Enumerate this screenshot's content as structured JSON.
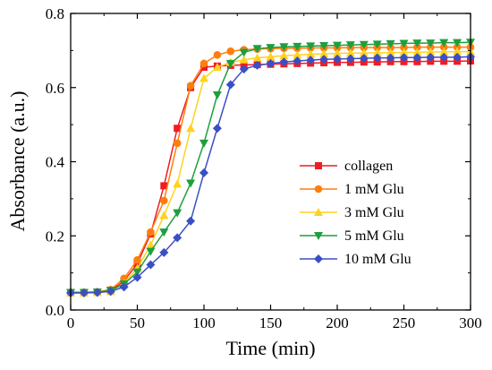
{
  "chart_data": {
    "type": "line",
    "title": "",
    "xlabel": "Time (min)",
    "ylabel": "Absorbance (a.u.)",
    "xlim": [
      0,
      300
    ],
    "ylim": [
      0,
      0.8
    ],
    "xticks": [
      0,
      50,
      100,
      150,
      200,
      250,
      300
    ],
    "yticks": [
      0.0,
      0.2,
      0.4,
      0.6,
      0.8
    ],
    "xtick_labels": [
      "0",
      "50",
      "100",
      "150",
      "200",
      "250",
      "300"
    ],
    "ytick_labels": [
      "0.0",
      "0.2",
      "0.4",
      "0.6",
      "0.8"
    ],
    "grid": false,
    "legend_position": "center-right",
    "x": [
      0,
      10,
      20,
      30,
      40,
      50,
      60,
      70,
      80,
      90,
      100,
      110,
      120,
      130,
      140,
      150,
      160,
      170,
      180,
      190,
      200,
      210,
      220,
      230,
      240,
      250,
      260,
      270,
      280,
      290,
      300
    ],
    "series": [
      {
        "name": "collagen",
        "color": "#ee1c25",
        "marker": "square",
        "values": [
          0.047,
          0.047,
          0.048,
          0.052,
          0.078,
          0.125,
          0.205,
          0.335,
          0.49,
          0.6,
          0.655,
          0.658,
          0.66,
          0.661,
          0.662,
          0.663,
          0.664,
          0.665,
          0.666,
          0.667,
          0.668,
          0.668,
          0.669,
          0.669,
          0.67,
          0.67,
          0.67,
          0.671,
          0.671,
          0.671,
          0.672
        ]
      },
      {
        "name": "1 mM Glu",
        "color": "#ff7f0e",
        "marker": "circle",
        "values": [
          0.048,
          0.048,
          0.049,
          0.055,
          0.085,
          0.135,
          0.21,
          0.295,
          0.45,
          0.605,
          0.665,
          0.688,
          0.698,
          0.702,
          0.704,
          0.705,
          0.706,
          0.706,
          0.707,
          0.707,
          0.707,
          0.708,
          0.708,
          0.708,
          0.708,
          0.708,
          0.709,
          0.709,
          0.709,
          0.709,
          0.709
        ]
      },
      {
        "name": "3 mM Glu",
        "color": "#ffd21f",
        "marker": "triangle-up",
        "values": [
          0.046,
          0.046,
          0.047,
          0.05,
          0.072,
          0.112,
          0.175,
          0.255,
          0.34,
          0.49,
          0.625,
          0.655,
          0.668,
          0.675,
          0.68,
          0.683,
          0.686,
          0.688,
          0.69,
          0.691,
          0.692,
          0.693,
          0.693,
          0.694,
          0.694,
          0.695,
          0.695,
          0.696,
          0.696,
          0.697,
          0.697
        ]
      },
      {
        "name": "5 mM Glu",
        "color": "#1e9e3e",
        "marker": "triangle-down",
        "values": [
          0.047,
          0.047,
          0.048,
          0.053,
          0.07,
          0.102,
          0.158,
          0.21,
          0.262,
          0.342,
          0.45,
          0.58,
          0.665,
          0.695,
          0.705,
          0.708,
          0.71,
          0.711,
          0.712,
          0.713,
          0.714,
          0.715,
          0.716,
          0.717,
          0.718,
          0.719,
          0.72,
          0.72,
          0.721,
          0.721,
          0.722
        ]
      },
      {
        "name": "10 mM Glu",
        "color": "#3b4fc4",
        "marker": "diamond",
        "values": [
          0.046,
          0.046,
          0.047,
          0.05,
          0.062,
          0.088,
          0.122,
          0.155,
          0.195,
          0.24,
          0.37,
          0.49,
          0.608,
          0.65,
          0.66,
          0.665,
          0.669,
          0.672,
          0.674,
          0.676,
          0.677,
          0.678,
          0.679,
          0.68,
          0.68,
          0.681,
          0.681,
          0.682,
          0.682,
          0.682,
          0.683
        ]
      }
    ]
  }
}
